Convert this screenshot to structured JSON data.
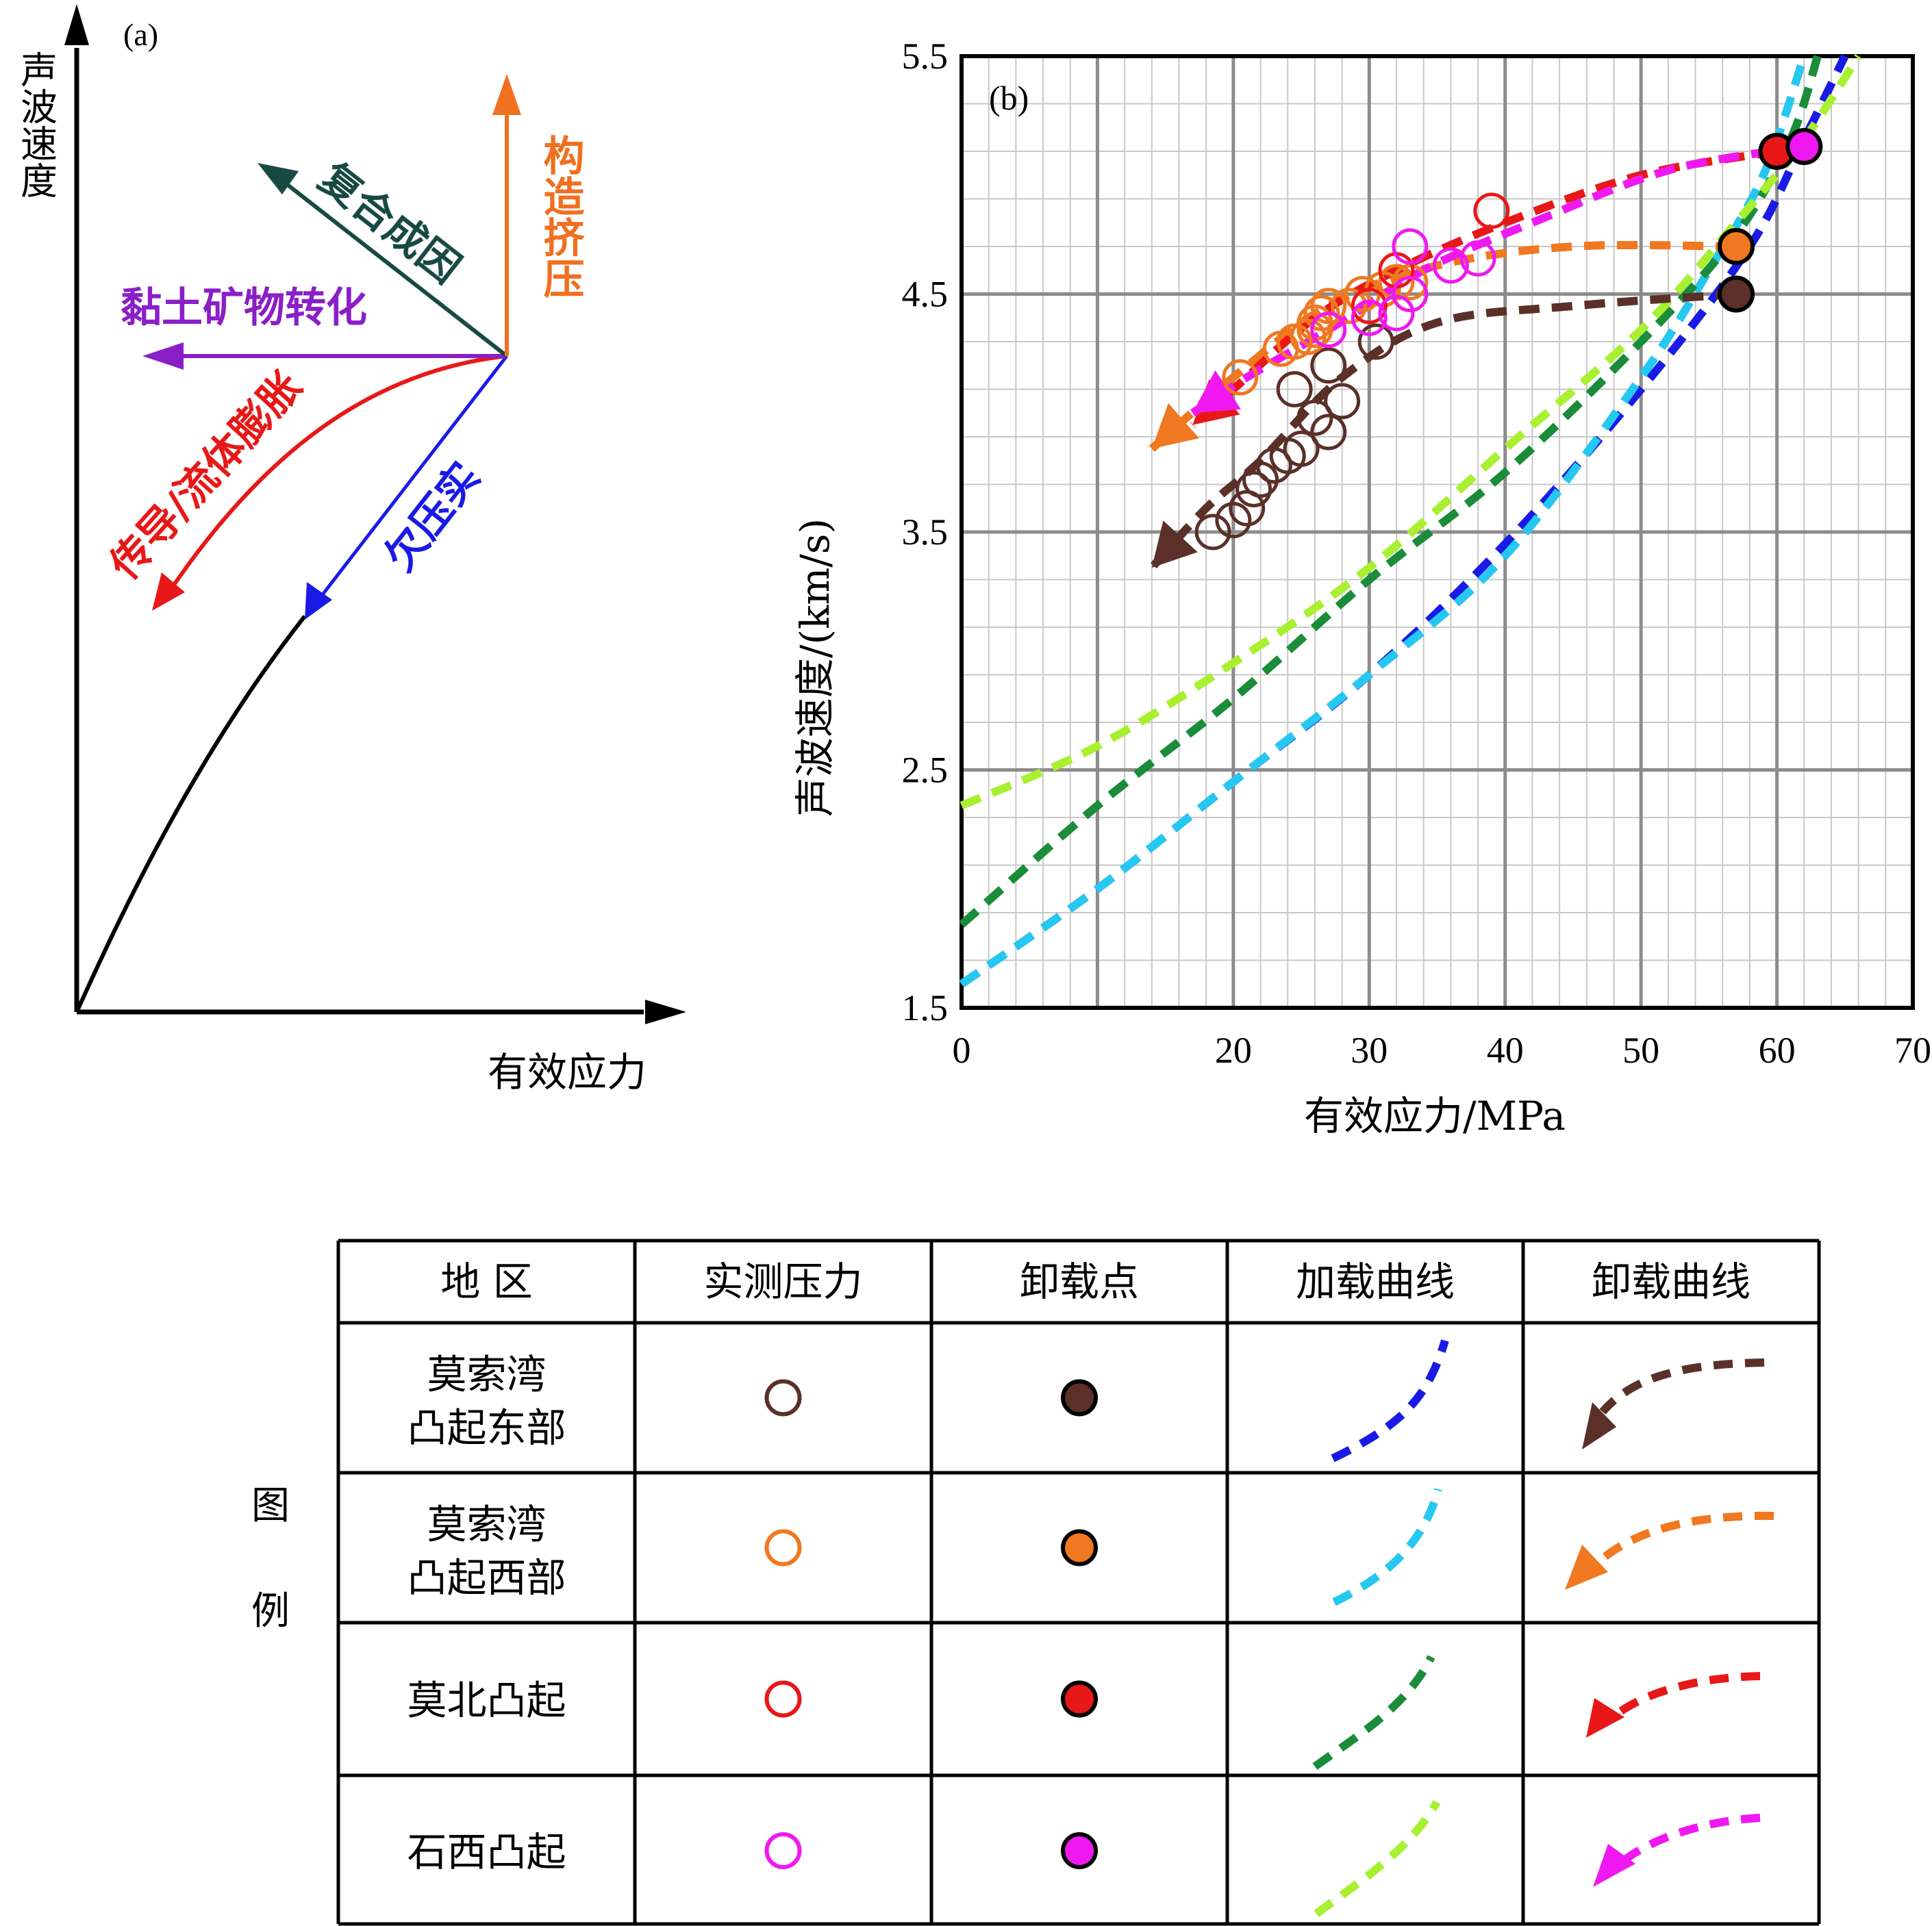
{
  "panel_a": {
    "label": "(a)",
    "ylabel": "声波速度",
    "xlabel": "有效应力",
    "arrows": [
      {
        "key": "tectonic",
        "label": "构造挤压",
        "color": "#f07020"
      },
      {
        "key": "composite",
        "label": "复合成因",
        "color": "#184a44"
      },
      {
        "key": "clay",
        "label": "黏土矿物转化",
        "color": "#8a1fc8"
      },
      {
        "key": "fluid",
        "label": "传导/流体膨胀",
        "color": "#e81818"
      },
      {
        "key": "under",
        "label": "欠压实",
        "color": "#1a1ae6"
      }
    ]
  },
  "chart_data": [
    {
      "type": "scatter",
      "panel_label": "(b)",
      "xlabel": "有效应力/MPa",
      "ylabel": "声波速度/(km/s)",
      "xlim": [
        0,
        70
      ],
      "ylim": [
        1.5,
        5.5
      ],
      "x_ticks": [
        0,
        10,
        20,
        30,
        40,
        50,
        60,
        70
      ],
      "x_tick_labels": [
        "0",
        "",
        "20",
        "30",
        "40",
        "50",
        "60",
        "70"
      ],
      "y_ticks": [
        1.5,
        2.5,
        3.5,
        4.5,
        5.5
      ],
      "y_tick_labels": [
        "1.5",
        "2.5",
        "3.5",
        "4.5",
        "5.5"
      ],
      "grid": true,
      "series": [
        {
          "name": "莫索湾凸起东部",
          "color": "#5a3028",
          "measured": [
            [
              18.5,
              3.5
            ],
            [
              20,
              3.55
            ],
            [
              21,
              3.6
            ],
            [
              21.5,
              3.68
            ],
            [
              22,
              3.72
            ],
            [
              23,
              3.78
            ],
            [
              24,
              3.82
            ],
            [
              25,
              3.85
            ],
            [
              24.5,
              4.1
            ],
            [
              26,
              3.98
            ],
            [
              27,
              3.92
            ],
            [
              28,
              4.05
            ],
            [
              27,
              4.2
            ],
            [
              30.5,
              4.3
            ]
          ],
          "unload_point": [
            57,
            4.5
          ],
          "loading_curve": [
            [
              0,
              1.6
            ],
            [
              10,
              2.0
            ],
            [
              20,
              2.45
            ],
            [
              30,
              2.9
            ],
            [
              40,
              3.45
            ],
            [
              50,
              4.1
            ],
            [
              58,
              4.7
            ],
            [
              62,
              5.15
            ],
            [
              65,
              5.5
            ]
          ],
          "unloading_curve": [
            [
              57,
              4.5
            ],
            [
              45,
              4.45
            ],
            [
              35,
              4.38
            ],
            [
              28,
              4.15
            ],
            [
              22,
              3.8
            ],
            [
              18,
              3.6
            ],
            [
              14,
              3.35
            ]
          ]
        },
        {
          "name": "莫索湾凸起西部",
          "color": "#f07820",
          "measured": [
            [
              20.5,
              4.15
            ],
            [
              23.5,
              4.27
            ],
            [
              24.5,
              4.3
            ],
            [
              25.5,
              4.32
            ],
            [
              26,
              4.38
            ],
            [
              26.5,
              4.42
            ],
            [
              27,
              4.45
            ],
            [
              28.5,
              4.45
            ],
            [
              29.5,
              4.5
            ],
            [
              31,
              4.52
            ],
            [
              32,
              4.55
            ],
            [
              33,
              4.55
            ],
            [
              26,
              4.35
            ]
          ],
          "unload_point": [
            57,
            4.7
          ],
          "loading_curve": [
            [
              0,
              1.6
            ],
            [
              10,
              2.0
            ],
            [
              20,
              2.45
            ],
            [
              30,
              2.9
            ],
            [
              40,
              3.4
            ],
            [
              50,
              4.15
            ],
            [
              55,
              4.6
            ],
            [
              59,
              5.0
            ],
            [
              62,
              5.5
            ]
          ],
          "unloading_curve": [
            [
              57,
              4.7
            ],
            [
              45,
              4.7
            ],
            [
              35,
              4.62
            ],
            [
              27,
              4.45
            ],
            [
              20,
              4.15
            ],
            [
              14,
              3.85
            ]
          ]
        },
        {
          "name": "莫北凸起",
          "color": "#e81818",
          "measured": [
            [
              39,
              4.85
            ],
            [
              32,
              4.6
            ],
            [
              30,
              4.45
            ]
          ],
          "unload_point": [
            60,
            5.1
          ],
          "loading_curve": [
            [
              0,
              1.85
            ],
            [
              10,
              2.35
            ],
            [
              20,
              2.8
            ],
            [
              30,
              3.3
            ],
            [
              40,
              3.75
            ],
            [
              50,
              4.3
            ],
            [
              57,
              4.75
            ],
            [
              61,
              5.15
            ],
            [
              63,
              5.5
            ]
          ],
          "unloading_curve": [
            [
              60,
              5.1
            ],
            [
              50,
              5.0
            ],
            [
              40,
              4.8
            ],
            [
              32,
              4.6
            ],
            [
              26,
              4.4
            ],
            [
              20,
              4.1
            ],
            [
              17,
              3.95
            ]
          ]
        },
        {
          "name": "石西凸起",
          "color": "#f018f0",
          "measured": [
            [
              33,
              4.7
            ],
            [
              36,
              4.62
            ],
            [
              38,
              4.65
            ],
            [
              33,
              4.5
            ],
            [
              32,
              4.42
            ],
            [
              30,
              4.4
            ],
            [
              27,
              4.35
            ]
          ],
          "unload_point": [
            62,
            5.12
          ],
          "loading_curve": [
            [
              0,
              2.35
            ],
            [
              10,
              2.6
            ],
            [
              20,
              2.95
            ],
            [
              30,
              3.35
            ],
            [
              40,
              3.85
            ],
            [
              50,
              4.35
            ],
            [
              57,
              4.8
            ],
            [
              62,
              5.15
            ],
            [
              66,
              5.5
            ]
          ],
          "unloading_curve": [
            [
              62,
              5.12
            ],
            [
              52,
              5.02
            ],
            [
              42,
              4.8
            ],
            [
              34,
              4.6
            ],
            [
              27,
              4.35
            ],
            [
              21,
              4.15
            ],
            [
              17,
              4.0
            ]
          ]
        }
      ]
    }
  ],
  "legend_table": {
    "side_label_1": "图",
    "side_label_2": "例",
    "headers": [
      "地  区",
      "实测压力",
      "卸载点",
      "加载曲线",
      "卸载曲线"
    ],
    "rows": [
      {
        "region_line1": "莫索湾",
        "region_line2": "凸起东部",
        "color": "#5a3028",
        "load_color": "#1a1ae6"
      },
      {
        "region_line1": "莫索湾",
        "region_line2": "凸起西部",
        "color": "#f07820",
        "load_color": "#25c8f0"
      },
      {
        "region_line1": "莫北凸起",
        "region_line2": "",
        "color": "#e81818",
        "load_color": "#1a8c3a"
      },
      {
        "region_line1": "石西凸起",
        "region_line2": "",
        "color": "#f018f0",
        "load_color": "#a8f030"
      }
    ]
  }
}
